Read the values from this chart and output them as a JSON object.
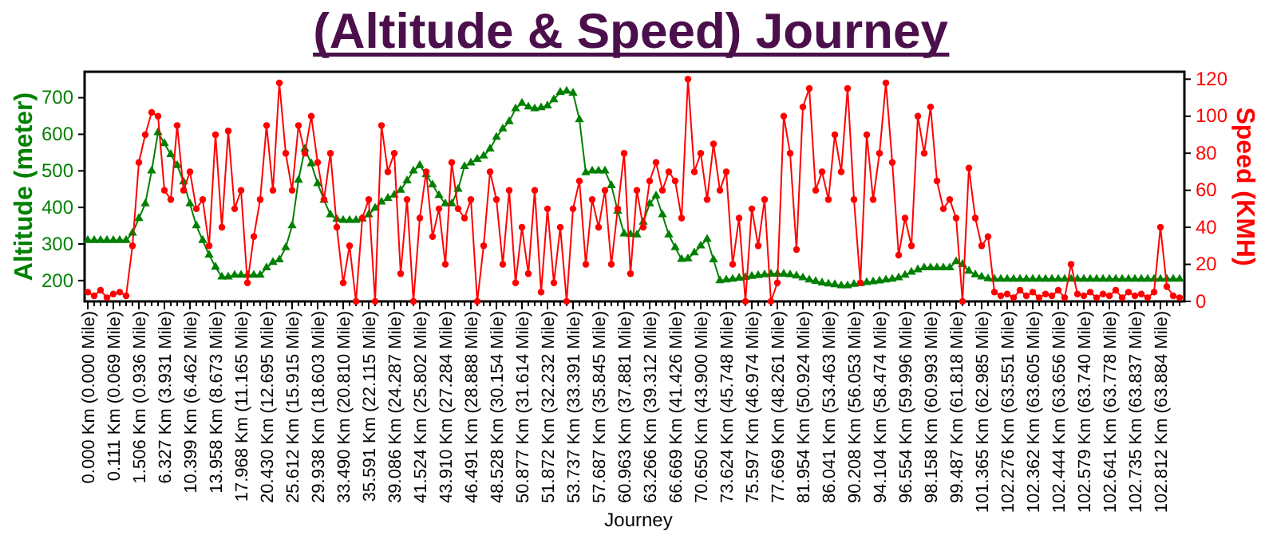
{
  "chart_data": {
    "type": "line",
    "title": "(Altitude & Speed) Journey",
    "xlabel": "Journey",
    "ylabel": "Altitude (meter)",
    "y2label": "Speed (KMH)",
    "categories": [
      "0.000 Km (0.000 Mile)",
      null,
      null,
      null,
      "0.111 Km (0.069 Mile)",
      null,
      null,
      null,
      "1.506 Km (0.936 Mile)",
      null,
      null,
      null,
      "6.327 Km (3.931 Mile)",
      null,
      null,
      null,
      "10.399 Km (6.462 Mile)",
      null,
      null,
      null,
      "13.958 Km (8.673 Mile)",
      null,
      null,
      null,
      "17.968 Km (11.165 Mile)",
      null,
      null,
      null,
      "20.430 Km (12.695 Mile)",
      null,
      null,
      null,
      "25.612 Km (15.915 Mile)",
      null,
      null,
      null,
      "29.938 Km (18.603 Mile)",
      null,
      null,
      null,
      "33.490 Km (20.810 Mile)",
      null,
      null,
      null,
      "35.591 Km (22.115 Mile)",
      null,
      null,
      null,
      "39.086 Km (24.287 Mile)",
      null,
      null,
      null,
      "41.524 Km (25.802 Mile)",
      null,
      null,
      null,
      "43.910 Km (27.284 Mile)",
      null,
      null,
      null,
      "46.491 Km (28.888 Mile)",
      null,
      null,
      null,
      "48.528 Km (30.154 Mile)",
      null,
      null,
      null,
      "50.877 Km (31.614 Mile)",
      null,
      null,
      null,
      "51.872 Km (32.232 Mile)",
      null,
      null,
      null,
      "53.737 Km (33.391 Mile)",
      null,
      null,
      null,
      "57.687 Km (35.845 Mile)",
      null,
      null,
      null,
      "60.963 Km (37.881 Mile)",
      null,
      null,
      null,
      "63.266 Km (39.312 Mile)",
      null,
      null,
      null,
      "66.669 Km (41.426 Mile)",
      null,
      null,
      null,
      "70.650 Km (43.900 Mile)",
      null,
      null,
      null,
      "73.624 Km (45.748 Mile)",
      null,
      null,
      null,
      "75.597 Km (46.974 Mile)",
      null,
      null,
      null,
      "77.669 Km (48.261 Mile)",
      null,
      null,
      null,
      "81.954 Km (50.924 Mile)",
      null,
      null,
      null,
      "86.041 Km (53.463 Mile)",
      null,
      null,
      null,
      "90.208 Km (56.053 Mile)",
      null,
      null,
      null,
      "94.104 Km (58.474 Mile)",
      null,
      null,
      null,
      "96.554 Km (59.996 Mile)",
      null,
      null,
      null,
      "98.158 Km (60.993 Mile)",
      null,
      null,
      null,
      "99.487 Km (61.818 Mile)",
      null,
      null,
      null,
      "101.365 Km (62.985 Mile)",
      null,
      null,
      null,
      "102.276 Km (63.551 Mile)",
      null,
      null,
      null,
      "102.362 Km (63.605 Mile)",
      null,
      null,
      null,
      "102.444 Km (63.656 Mile)",
      null,
      null,
      null,
      "102.579 Km (63.740 Mile)",
      null,
      null,
      null,
      "102.641 Km (63.778 Mile)",
      null,
      null,
      null,
      "102.735 Km (63.837 Mile)",
      null,
      null,
      null,
      "102.812 Km (63.884 Mile)",
      null,
      null,
      null
    ],
    "series": [
      {
        "color": "#008000",
        "marker": "triangle",
        "values": [
          310,
          310,
          310,
          310,
          310,
          310,
          310,
          330,
          370,
          410,
          500,
          605,
          575,
          545,
          515,
          470,
          410,
          350,
          310,
          270,
          237,
          210,
          210,
          215,
          215,
          215,
          215,
          215,
          235,
          250,
          257,
          290,
          350,
          475,
          560,
          520,
          465,
          420,
          380,
          368,
          365,
          365,
          365,
          369,
          380,
          398,
          415,
          425,
          434,
          447,
          473,
          500,
          515,
          490,
          462,
          433,
          410,
          410,
          450,
          512,
          522,
          532,
          541,
          560,
          592,
          615,
          635,
          670,
          685,
          675,
          670,
          673,
          678,
          695,
          715,
          718,
          713,
          640,
          495,
          500,
          500,
          500,
          460,
          390,
          328,
          326,
          325,
          360,
          410,
          432,
          380,
          325,
          290,
          258,
          260,
          276,
          295,
          313,
          257,
          200,
          202,
          204,
          207,
          209,
          212,
          214,
          216,
          218,
          218,
          218,
          216,
          213,
          208,
          202,
          198,
          194,
          191,
          189,
          186,
          186,
          190,
          192,
          195,
          197,
          199,
          202,
          204,
          208,
          215,
          223,
          230,
          235,
          235,
          235,
          235,
          235,
          252,
          244,
          226,
          216,
          210,
          205,
          204,
          204,
          204,
          204,
          204,
          204,
          204,
          204,
          204,
          204,
          204,
          204,
          204,
          204,
          204,
          204,
          204,
          204,
          204,
          204,
          204,
          204,
          204,
          204,
          204,
          204,
          204,
          204,
          204,
          204
        ]
      },
      {
        "axis": "y2",
        "color": "#ff0000",
        "marker": "circle",
        "values": [
          5,
          3,
          6,
          2,
          4,
          5,
          3,
          30,
          75,
          90,
          102,
          100,
          60,
          55,
          95,
          60,
          70,
          50,
          55,
          30,
          90,
          40,
          92,
          50,
          60,
          10,
          35,
          55,
          95,
          60,
          118,
          80,
          60,
          95,
          80,
          100,
          75,
          55,
          80,
          40,
          10,
          30,
          0,
          45,
          55,
          0,
          95,
          70,
          80,
          15,
          55,
          0,
          45,
          70,
          35,
          50,
          20,
          75,
          50,
          45,
          55,
          0,
          30,
          70,
          55,
          20,
          60,
          10,
          40,
          15,
          60,
          5,
          50,
          10,
          40,
          0,
          50,
          65,
          20,
          55,
          40,
          60,
          20,
          50,
          80,
          15,
          60,
          40,
          65,
          75,
          60,
          70,
          65,
          45,
          120,
          70,
          80,
          55,
          85,
          60,
          70,
          20,
          45,
          0,
          50,
          30,
          55,
          0,
          10,
          100,
          80,
          28,
          105,
          115,
          60,
          70,
          55,
          90,
          70,
          115,
          55,
          10,
          90,
          55,
          80,
          118,
          75,
          25,
          45,
          30,
          100,
          80,
          105,
          65,
          50,
          55,
          45,
          0,
          72,
          45,
          30,
          35,
          5,
          3,
          4,
          2,
          6,
          3,
          5,
          2,
          4,
          3,
          6,
          2,
          20,
          4,
          3,
          5,
          2,
          4,
          3,
          6,
          2,
          5,
          3,
          4,
          2,
          5,
          40,
          8,
          3,
          2
        ]
      }
    ],
    "ylim": [
      143,
      771
    ],
    "yticks": [
      200,
      300,
      400,
      500,
      600,
      700
    ],
    "y2lim": [
      0,
      124
    ],
    "y2ticks": [
      0,
      20,
      40,
      60,
      80,
      100,
      120
    ],
    "grid": false
  }
}
